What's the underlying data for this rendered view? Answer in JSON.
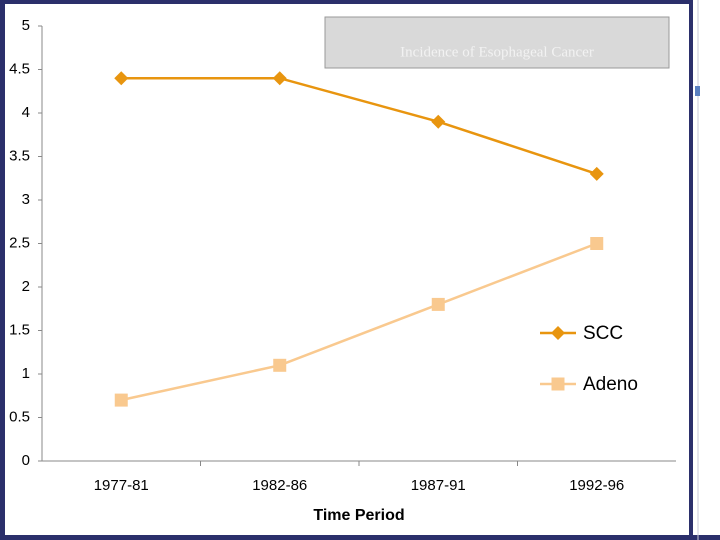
{
  "chart_data": {
    "type": "line",
    "title": "Incidence of Esophageal Cancer",
    "x_label": "Time Period",
    "categories": [
      "1977-81",
      "1982-86",
      "1987-91",
      "1992-96"
    ],
    "series": [
      {
        "name": "SCC",
        "color": "#e8950f",
        "marker": "diamond",
        "values": [
          4.4,
          4.4,
          3.9,
          3.3
        ]
      },
      {
        "name": "Adeno",
        "color": "#f9c98f",
        "marker": "square",
        "values": [
          0.7,
          1.1,
          1.8,
          2.5
        ]
      }
    ],
    "ylim": [
      0,
      5
    ],
    "yticks": [
      0,
      0.5,
      1,
      1.5,
      2,
      2.5,
      3,
      3.5,
      4,
      4.5,
      5
    ],
    "grid": false,
    "legend": "right"
  }
}
